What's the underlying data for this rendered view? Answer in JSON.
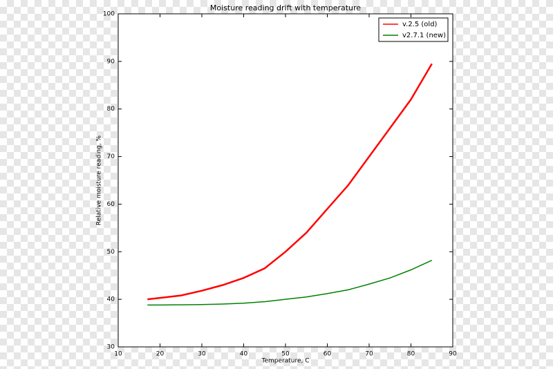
{
  "chart_data": {
    "type": "line",
    "title": "Moisture reading drift with temperature",
    "x_label": "Temperature, C",
    "y_label": "Relative moisture reading, %",
    "x": [
      17,
      20,
      25,
      30,
      35,
      40,
      45,
      50,
      55,
      60,
      65,
      70,
      75,
      80,
      85
    ],
    "series": [
      {
        "name": "v.2.5 (old)",
        "color": "#ff0000",
        "values": [
          40,
          40.3,
          40.8,
          41.8,
          43,
          44.5,
          46.5,
          50,
          54,
          59,
          64,
          70,
          76,
          82,
          89.5
        ]
      },
      {
        "name": "v2.7.1 (new)",
        "color": "#008000",
        "values": [
          38.8,
          38.8,
          38.85,
          38.9,
          39,
          39.2,
          39.5,
          40,
          40.5,
          41.2,
          42,
          43.2,
          44.5,
          46.2,
          48.2
        ]
      }
    ],
    "xlim": [
      10,
      90
    ],
    "xticks": [
      10,
      20,
      30,
      40,
      50,
      60,
      70,
      80,
      90
    ],
    "ylim": [
      30,
      100
    ],
    "yticks": [
      30,
      40,
      50,
      60,
      70,
      80,
      90,
      100
    ],
    "grid": false,
    "legend": "upper right"
  }
}
